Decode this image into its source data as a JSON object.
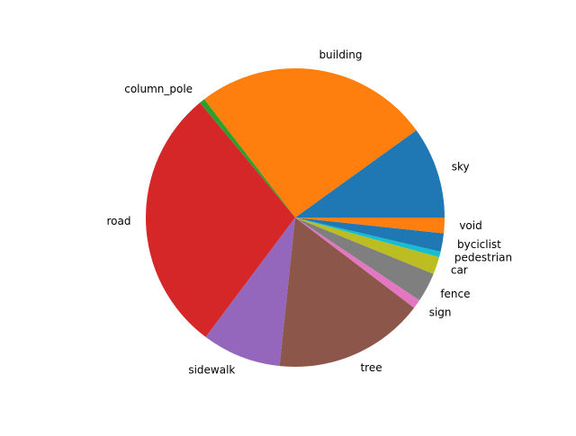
{
  "chart_data": {
    "type": "pie",
    "title": "",
    "start_angle_deg": 0,
    "direction": "counterclockwise",
    "slices": [
      {
        "label": "sky",
        "value": 10.0,
        "color": "#1f77b4"
      },
      {
        "label": "building",
        "value": 25.6,
        "color": "#ff7f0e"
      },
      {
        "label": "column_pole",
        "value": 0.6,
        "color": "#2ca02c"
      },
      {
        "label": "road",
        "value": 28.9,
        "color": "#d62728"
      },
      {
        "label": "sidewalk",
        "value": 8.6,
        "color": "#9467bd"
      },
      {
        "label": "tree",
        "value": 16.4,
        "color": "#8c564b"
      },
      {
        "label": "sign",
        "value": 1.0,
        "color": "#e377c2"
      },
      {
        "label": "fence",
        "value": 3.2,
        "color": "#7f7f7f"
      },
      {
        "label": "car",
        "value": 1.9,
        "color": "#bcbd22"
      },
      {
        "label": "pedestrian",
        "value": 0.6,
        "color": "#17becf"
      },
      {
        "label": "byciclist",
        "value": 2.0,
        "color": "#1f77b4"
      },
      {
        "label": "void",
        "value": 1.7,
        "color": "#ff7f0e"
      }
    ]
  }
}
